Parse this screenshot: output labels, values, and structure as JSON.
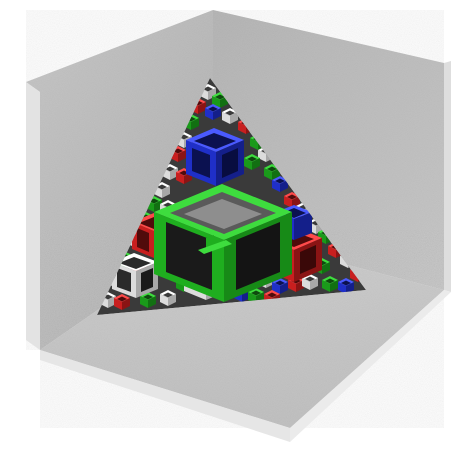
{
  "scene": {
    "background_color": "#ffffff",
    "room_wall_color": "#bdbdbd",
    "room_floor_color": "#d0d0d0",
    "room_edge_color": "#e6e6e6",
    "fractal_cut_color": "#8a8a8a",
    "cube_colors": {
      "large": "#1fae1f",
      "blue": "#1f2fc8",
      "red": "#c81f1f",
      "white": "#f2f2f2",
      "dark": "#2a2a2a"
    }
  }
}
